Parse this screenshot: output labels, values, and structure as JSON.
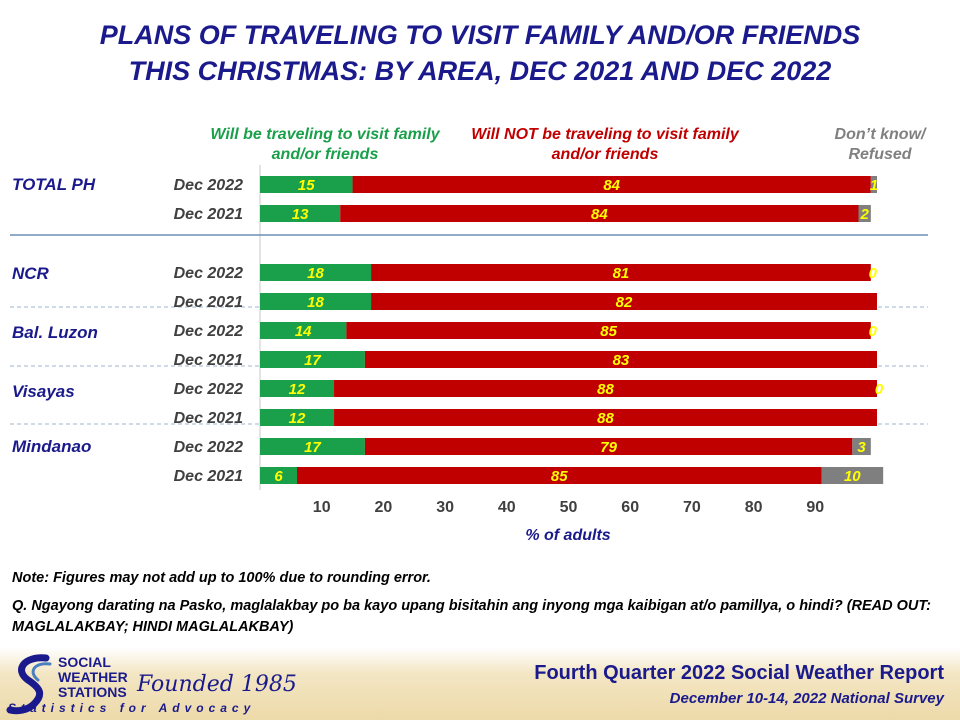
{
  "title_line1": "PLANS OF TRAVELING TO VISIT FAMILY AND/OR FRIENDS",
  "title_line2": "THIS CHRISTMAS: BY AREA, DEC 2021 AND DEC 2022",
  "legend": {
    "green": "Will be traveling to visit family and/or friends",
    "red": "Will NOT be traveling to visit family and/or friends",
    "gray": "Don’t know/ Refused"
  },
  "colors": {
    "green": "#1aa04a",
    "red": "#c00000",
    "gray": "#7f7f7f",
    "label": "#ffff00",
    "navy": "#1a1a8c"
  },
  "chart_data": {
    "type": "bar",
    "orientation": "horizontal",
    "stacked": true,
    "xlabel": "% of adults",
    "xlim": [
      0,
      100
    ],
    "xticks": [
      10,
      20,
      30,
      40,
      50,
      60,
      70,
      80,
      90
    ],
    "series_names": [
      "Will be traveling to visit family and/or friends",
      "Will NOT be traveling to visit family and/or friends",
      "Don’t know/ Refused"
    ],
    "groups": [
      {
        "area": "TOTAL PH",
        "rows": [
          {
            "period": "Dec 2022",
            "values": [
              15,
              84,
              1
            ]
          },
          {
            "period": "Dec 2021",
            "values": [
              13,
              84,
              2
            ]
          }
        ]
      },
      {
        "area": "NCR",
        "rows": [
          {
            "period": "Dec 2022",
            "values": [
              18,
              81,
              0
            ]
          },
          {
            "period": "Dec 2021",
            "values": [
              18,
              82,
              null
            ]
          }
        ]
      },
      {
        "area": "Bal. Luzon",
        "rows": [
          {
            "period": "Dec 2022",
            "values": [
              14,
              85,
              0
            ]
          },
          {
            "period": "Dec 2021",
            "values": [
              17,
              83,
              null
            ]
          }
        ]
      },
      {
        "area": "Visayas",
        "rows": [
          {
            "period": "Dec 2022",
            "values": [
              12,
              88,
              0
            ]
          },
          {
            "period": "Dec 2021",
            "values": [
              12,
              88,
              null
            ]
          }
        ]
      },
      {
        "area": "Mindanao",
        "rows": [
          {
            "period": "Dec 2022",
            "values": [
              17,
              79,
              3
            ]
          },
          {
            "period": "Dec 2021",
            "values": [
              6,
              85,
              10
            ]
          }
        ]
      }
    ]
  },
  "notes": {
    "line1": "Note: Figures may not add up to 100% due to rounding error.",
    "line2": "Q. Ngayong darating na Pasko, maglalakbay po ba kayo upang bisitahin ang inyong mga kaibigan at/o pamillya, o hindi? (READ OUT: MAGLALAKBAY; HINDI MAGLALAKBAY)"
  },
  "footer": {
    "title": "Fourth Quarter 2022 Social Weather Report",
    "subtitle": "December 10-14, 2022 National Survey",
    "org": "SOCIAL\nWEATHER\nSTATIONS",
    "founded": "Founded 1985",
    "tagline": "Statistics for Advocacy"
  }
}
